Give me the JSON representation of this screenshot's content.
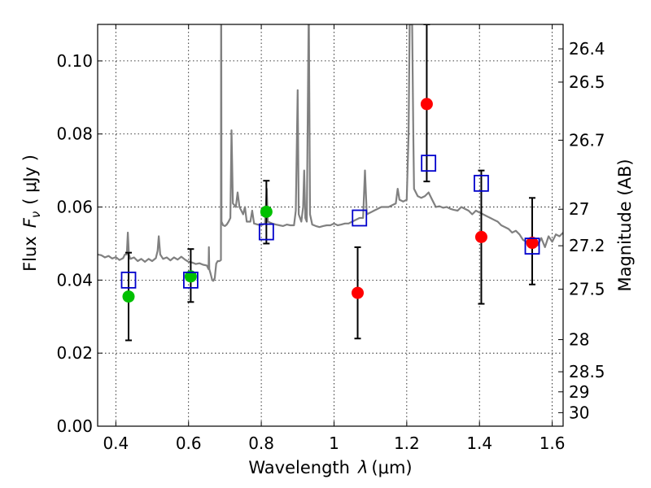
{
  "chart_data": {
    "type": "scatter",
    "xlabel_text": "Wavelength",
    "xlabel_symbol": "λ",
    "xlabel_unit": "(μm)",
    "ylabel_text": "Flux",
    "ylabel_symbol": "F",
    "ylabel_subscript": "ν",
    "ylabel_unit": "( μJy )",
    "y2label": "Magnitude (AB)",
    "xlim": [
      0.35,
      1.63
    ],
    "ylim": [
      0.0,
      0.11
    ],
    "grid": true,
    "xticks": [
      0.4,
      0.6,
      0.8,
      1.0,
      1.2,
      1.4,
      1.6
    ],
    "xtick_labels": [
      "0.4",
      "0.6",
      "0.8",
      "1",
      "1.2",
      "1.4",
      "1.6"
    ],
    "yticks": [
      0.0,
      0.02,
      0.04,
      0.06,
      0.08,
      0.1
    ],
    "ytick_labels": [
      "0.00",
      "0.02",
      "0.04",
      "0.06",
      "0.08",
      "0.10"
    ],
    "y2ticks": [
      {
        "label": "26.4",
        "flux": 0.1033
      },
      {
        "label": "26.5",
        "flux": 0.0942
      },
      {
        "label": "26.7",
        "flux": 0.0783
      },
      {
        "label": "27",
        "flux": 0.0594
      },
      {
        "label": "27.2",
        "flux": 0.0494
      },
      {
        "label": "27.5",
        "flux": 0.0375
      },
      {
        "label": "28",
        "flux": 0.0237
      },
      {
        "label": "28.5",
        "flux": 0.0149
      },
      {
        "label": "29",
        "flux": 0.0094
      },
      {
        "label": "30",
        "flux": 0.0037
      }
    ],
    "series": [
      {
        "name": "model spectrum",
        "kind": "line",
        "color": "#808080",
        "points": [
          [
            0.35,
            0.047
          ],
          [
            0.36,
            0.0468
          ],
          [
            0.37,
            0.0462
          ],
          [
            0.38,
            0.0466
          ],
          [
            0.39,
            0.0459
          ],
          [
            0.4,
            0.0463
          ],
          [
            0.41,
            0.0455
          ],
          [
            0.42,
            0.046
          ],
          [
            0.425,
            0.047
          ],
          [
            0.43,
            0.047
          ],
          [
            0.433,
            0.053
          ],
          [
            0.436,
            0.047
          ],
          [
            0.44,
            0.0458
          ],
          [
            0.45,
            0.0462
          ],
          [
            0.46,
            0.0452
          ],
          [
            0.47,
            0.0458
          ],
          [
            0.48,
            0.045
          ],
          [
            0.49,
            0.0458
          ],
          [
            0.5,
            0.0452
          ],
          [
            0.51,
            0.046
          ],
          [
            0.515,
            0.048
          ],
          [
            0.518,
            0.052
          ],
          [
            0.522,
            0.047
          ],
          [
            0.53,
            0.0458
          ],
          [
            0.54,
            0.0462
          ],
          [
            0.55,
            0.0454
          ],
          [
            0.56,
            0.0462
          ],
          [
            0.57,
            0.0456
          ],
          [
            0.58,
            0.0464
          ],
          [
            0.59,
            0.0456
          ],
          [
            0.6,
            0.045
          ],
          [
            0.61,
            0.0448
          ],
          [
            0.62,
            0.0444
          ],
          [
            0.63,
            0.0446
          ],
          [
            0.64,
            0.0442
          ],
          [
            0.65,
            0.044
          ],
          [
            0.655,
            0.043
          ],
          [
            0.656,
            0.049
          ],
          [
            0.657,
            0.043
          ],
          [
            0.66,
            0.042
          ],
          [
            0.665,
            0.04
          ],
          [
            0.668,
            0.0398
          ],
          [
            0.672,
            0.0405
          ],
          [
            0.676,
            0.0445
          ],
          [
            0.68,
            0.0452
          ],
          [
            0.685,
            0.0452
          ],
          [
            0.689,
            0.0455
          ],
          [
            0.6895,
            0.11
          ],
          [
            0.69,
            0.11
          ],
          [
            0.6905,
            0.056
          ],
          [
            0.695,
            0.055
          ],
          [
            0.7,
            0.0548
          ],
          [
            0.705,
            0.0552
          ],
          [
            0.71,
            0.056
          ],
          [
            0.715,
            0.057
          ],
          [
            0.718,
            0.081
          ],
          [
            0.722,
            0.061
          ],
          [
            0.73,
            0.06
          ],
          [
            0.735,
            0.064
          ],
          [
            0.74,
            0.06
          ],
          [
            0.75,
            0.058
          ],
          [
            0.755,
            0.06
          ],
          [
            0.76,
            0.056
          ],
          [
            0.77,
            0.056
          ],
          [
            0.775,
            0.059
          ],
          [
            0.78,
            0.0555
          ],
          [
            0.79,
            0.0552
          ],
          [
            0.8,
            0.055
          ],
          [
            0.81,
            0.0555
          ],
          [
            0.815,
            0.065
          ],
          [
            0.818,
            0.056
          ],
          [
            0.83,
            0.0555
          ],
          [
            0.84,
            0.0552
          ],
          [
            0.85,
            0.055
          ],
          [
            0.86,
            0.0548
          ],
          [
            0.87,
            0.0552
          ],
          [
            0.88,
            0.055
          ],
          [
            0.89,
            0.055
          ],
          [
            0.895,
            0.059
          ],
          [
            0.9,
            0.092
          ],
          [
            0.903,
            0.058
          ],
          [
            0.91,
            0.056
          ],
          [
            0.915,
            0.06
          ],
          [
            0.918,
            0.07
          ],
          [
            0.921,
            0.057
          ],
          [
            0.925,
            0.056
          ],
          [
            0.93,
            0.11
          ],
          [
            0.931,
            0.11
          ],
          [
            0.934,
            0.058
          ],
          [
            0.94,
            0.0552
          ],
          [
            0.95,
            0.0548
          ],
          [
            0.96,
            0.0545
          ],
          [
            0.97,
            0.0548
          ],
          [
            0.98,
            0.055
          ],
          [
            0.99,
            0.055
          ],
          [
            1.0,
            0.0555
          ],
          [
            1.01,
            0.055
          ],
          [
            1.02,
            0.0552
          ],
          [
            1.03,
            0.0555
          ],
          [
            1.04,
            0.0555
          ],
          [
            1.05,
            0.056
          ],
          [
            1.06,
            0.0565
          ],
          [
            1.07,
            0.057
          ],
          [
            1.08,
            0.057
          ],
          [
            1.085,
            0.07
          ],
          [
            1.09,
            0.058
          ],
          [
            1.1,
            0.0585
          ],
          [
            1.11,
            0.059
          ],
          [
            1.12,
            0.0595
          ],
          [
            1.13,
            0.06
          ],
          [
            1.14,
            0.06
          ],
          [
            1.15,
            0.06
          ],
          [
            1.16,
            0.0605
          ],
          [
            1.17,
            0.061
          ],
          [
            1.175,
            0.065
          ],
          [
            1.18,
            0.062
          ],
          [
            1.19,
            0.0615
          ],
          [
            1.2,
            0.062
          ],
          [
            1.205,
            0.08
          ],
          [
            1.208,
            0.11
          ],
          [
            1.215,
            0.11
          ],
          [
            1.218,
            0.08
          ],
          [
            1.22,
            0.065
          ],
          [
            1.23,
            0.063
          ],
          [
            1.24,
            0.0625
          ],
          [
            1.25,
            0.063
          ],
          [
            1.26,
            0.064
          ],
          [
            1.27,
            0.062
          ],
          [
            1.28,
            0.06
          ],
          [
            1.29,
            0.0602
          ],
          [
            1.3,
            0.0598
          ],
          [
            1.31,
            0.06
          ],
          [
            1.32,
            0.0595
          ],
          [
            1.33,
            0.0592
          ],
          [
            1.34,
            0.059
          ],
          [
            1.35,
            0.06
          ],
          [
            1.36,
            0.0595
          ],
          [
            1.37,
            0.059
          ],
          [
            1.38,
            0.058
          ],
          [
            1.39,
            0.059
          ],
          [
            1.4,
            0.0585
          ],
          [
            1.41,
            0.058
          ],
          [
            1.42,
            0.0575
          ],
          [
            1.43,
            0.057
          ],
          [
            1.44,
            0.0565
          ],
          [
            1.45,
            0.056
          ],
          [
            1.46,
            0.055
          ],
          [
            1.47,
            0.0545
          ],
          [
            1.48,
            0.054
          ],
          [
            1.49,
            0.053
          ],
          [
            1.5,
            0.0535
          ],
          [
            1.51,
            0.0525
          ],
          [
            1.52,
            0.051
          ],
          [
            1.53,
            0.0505
          ],
          [
            1.54,
            0.05
          ],
          [
            1.55,
            0.051
          ],
          [
            1.56,
            0.0495
          ],
          [
            1.57,
            0.0515
          ],
          [
            1.58,
            0.049
          ],
          [
            1.59,
            0.052
          ],
          [
            1.6,
            0.0505
          ],
          [
            1.61,
            0.0525
          ],
          [
            1.62,
            0.052
          ],
          [
            1.63,
            0.053
          ]
        ]
      },
      {
        "name": "observed flux (red)",
        "kind": "errorbar",
        "color": "#ff0000",
        "marker": "circle",
        "points": [
          {
            "x": 1.065,
            "y": 0.0365,
            "yerr_low": 0.024,
            "yerr_high": 0.049
          },
          {
            "x": 1.255,
            "y": 0.0882,
            "yerr_low": 0.067,
            "yerr_high": 0.11
          },
          {
            "x": 1.405,
            "y": 0.0518,
            "yerr_low": 0.0335,
            "yerr_high": 0.07
          },
          {
            "x": 1.545,
            "y": 0.0502,
            "yerr_low": 0.0388,
            "yerr_high": 0.0625
          }
        ]
      },
      {
        "name": "observed flux (green)",
        "kind": "errorbar",
        "color": "#00c000",
        "marker": "circle",
        "points": [
          {
            "x": 0.435,
            "y": 0.0355,
            "yerr_low": 0.0235,
            "yerr_high": 0.0475
          },
          {
            "x": 0.606,
            "y": 0.041,
            "yerr_low": 0.034,
            "yerr_high": 0.0485
          },
          {
            "x": 0.814,
            "y": 0.0587,
            "yerr_low": 0.05,
            "yerr_high": 0.0672
          }
        ]
      },
      {
        "name": "model photometry",
        "kind": "marker",
        "color": "#0000cc",
        "marker": "open-square",
        "points": [
          {
            "x": 0.435,
            "y": 0.04
          },
          {
            "x": 0.606,
            "y": 0.04
          },
          {
            "x": 0.814,
            "y": 0.0532
          },
          {
            "x": 1.07,
            "y": 0.057
          },
          {
            "x": 1.26,
            "y": 0.072
          },
          {
            "x": 1.405,
            "y": 0.0665
          },
          {
            "x": 1.545,
            "y": 0.0493
          }
        ]
      }
    ]
  }
}
